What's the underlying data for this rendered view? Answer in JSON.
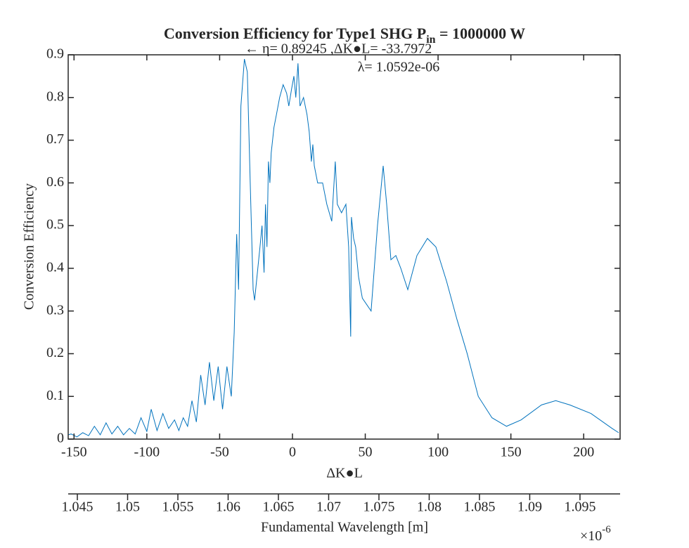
{
  "chart_data": {
    "type": "line",
    "title": {
      "main": "Conversion Efficiency for Type1 SHG P",
      "subscript": "in",
      "rest": " = 1000000 W"
    },
    "annotations": [
      "← η= 0.89245 ,ΔK●L= -33.7972",
      "λ= 1.0592e-06"
    ],
    "xlabel": "ΔK●L",
    "ylabel": "Conversion Efficiency",
    "x2label": "Fundamental Wavelength [m]",
    "x2_multiplier": {
      "base": "×10",
      "exponent": "-6"
    },
    "xlim": [
      -154,
      225
    ],
    "ylim": [
      0,
      0.9
    ],
    "xticks": [
      -150,
      -100,
      -50,
      0,
      50,
      100,
      150,
      200
    ],
    "yticks": [
      0,
      0.1,
      0.2,
      0.3,
      0.4,
      0.5,
      0.6,
      0.7,
      0.8,
      0.9
    ],
    "x2lim": [
      1.04409,
      1.09899
    ],
    "x2ticks": [
      1.045,
      1.05,
      1.055,
      1.06,
      1.065,
      1.07,
      1.075,
      1.08,
      1.085,
      1.09,
      1.095
    ],
    "x": [
      -154,
      -152,
      -148,
      -144,
      -140,
      -136,
      -132,
      -128,
      -124,
      -120,
      -116,
      -112,
      -108,
      -104,
      -100,
      -97,
      -93,
      -89,
      -85,
      -81,
      -78,
      -75,
      -72,
      -69,
      -66,
      -63,
      -60,
      -57,
      -54,
      -51,
      -48,
      -45,
      -42,
      -40,
      -38.3,
      -37,
      -35.4,
      -33,
      -31,
      -29,
      -27,
      -26,
      -22.3,
      -20.9,
      -19.5,
      -18.5,
      -17.5,
      -16.5,
      -15.5,
      -14.6,
      -12.7,
      -11,
      -8.8,
      -6.4,
      -4,
      -2.5,
      -0.6,
      1,
      2.3,
      3.8,
      5.2,
      7.6,
      10,
      11.5,
      13,
      14,
      15,
      17.3,
      20.7,
      23.6,
      27,
      29.4,
      30.8,
      33.7,
      36.7,
      38.6,
      40,
      40.5,
      42,
      43.4,
      45.4,
      48,
      54,
      58.4,
      62.3,
      64.7,
      67.6,
      71,
      74.4,
      79.2,
      85.5,
      92.7,
      98.5,
      105.8,
      113,
      120,
      127.6,
      137,
      147,
      157,
      171,
      180.8,
      190.5,
      205,
      219.5,
      224
    ],
    "series": [
      {
        "name": "Conversion Efficiency",
        "color": "#0072bd",
        "values": [
          0.01,
          0.012,
          0.005,
          0.015,
          0.008,
          0.03,
          0.01,
          0.038,
          0.012,
          0.03,
          0.01,
          0.025,
          0.012,
          0.05,
          0.018,
          0.07,
          0.02,
          0.06,
          0.025,
          0.045,
          0.02,
          0.05,
          0.03,
          0.09,
          0.04,
          0.15,
          0.08,
          0.18,
          0.09,
          0.17,
          0.07,
          0.17,
          0.1,
          0.25,
          0.48,
          0.35,
          0.78,
          0.89,
          0.86,
          0.6,
          0.35,
          0.325,
          0.45,
          0.5,
          0.39,
          0.55,
          0.45,
          0.65,
          0.6,
          0.67,
          0.73,
          0.76,
          0.8,
          0.83,
          0.81,
          0.78,
          0.82,
          0.85,
          0.8,
          0.88,
          0.78,
          0.8,
          0.76,
          0.72,
          0.65,
          0.69,
          0.64,
          0.6,
          0.6,
          0.55,
          0.51,
          0.65,
          0.55,
          0.53,
          0.55,
          0.45,
          0.24,
          0.52,
          0.47,
          0.45,
          0.38,
          0.33,
          0.3,
          0.5,
          0.64,
          0.55,
          0.42,
          0.43,
          0.4,
          0.35,
          0.43,
          0.47,
          0.45,
          0.37,
          0.28,
          0.2,
          0.1,
          0.05,
          0.03,
          0.045,
          0.08,
          0.09,
          0.08,
          0.06,
          0.025,
          0.015
        ]
      }
    ]
  }
}
